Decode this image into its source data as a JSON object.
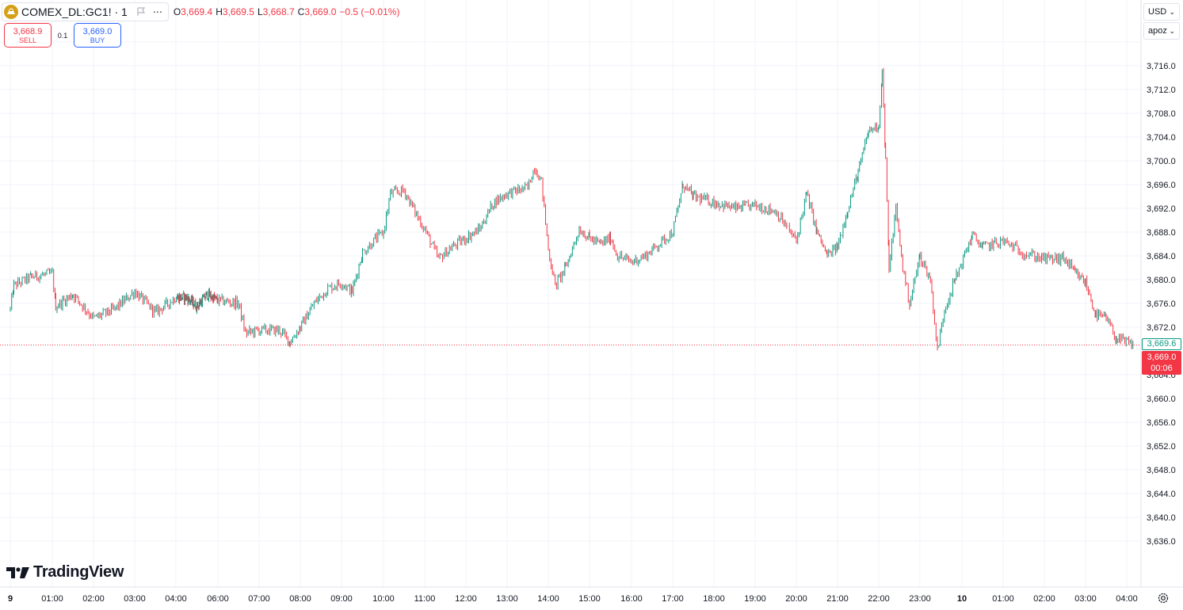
{
  "header": {
    "symbol": "COMEX_DL:GC1! · 1",
    "ohlc": [
      {
        "k": "O",
        "v": "3,669.4"
      },
      {
        "k": "H",
        "v": "3,669.5"
      },
      {
        "k": "L",
        "v": "3,668.7"
      },
      {
        "k": "C",
        "v": "3,669.0"
      },
      {
        "k": "",
        "v": "−0.5 (−0.01%)"
      }
    ]
  },
  "trade": {
    "sell_price": "3,668.9",
    "sell_label": "SELL",
    "spread": "0.1",
    "buy_price": "3,669.0",
    "buy_label": "BUY"
  },
  "controls": {
    "currency": "USD",
    "unit": "apoz"
  },
  "price_tags": {
    "ask": "3,669.6",
    "last": "3,669.0",
    "countdown": "00:06"
  },
  "branding": {
    "name": "TradingView"
  },
  "colors": {
    "up": "#089981",
    "down": "#f23645",
    "grid": "#f0f3fa",
    "text": "#131722",
    "buy": "#2962ff",
    "logo": "#d4a017"
  },
  "icons": [
    "gold-coin-icon",
    "flag-icon",
    "more-dots-icon",
    "chevron-down-icon",
    "settings-icon",
    "tradingview-logo-icon"
  ],
  "chart_data": {
    "type": "line",
    "series": [
      {
        "values_anchor": [
          [
            "9 00:00",
            3675.0
          ],
          [
            "9 00:05",
            3679.0
          ],
          [
            "9 00:30",
            3680.5
          ],
          [
            "9 01:00",
            3681.0
          ],
          [
            "9 01:05",
            3675.5
          ],
          [
            "9 01:30",
            3677.5
          ],
          [
            "9 02:00",
            3673.5
          ],
          [
            "9 02:30",
            3675.0
          ],
          [
            "9 03:00",
            3678.0
          ],
          [
            "9 03:30",
            3674.5
          ],
          [
            "9 04:00",
            3677.0
          ],
          [
            "9 04:30",
            3677.0
          ],
          [
            "9 05:00",
            3675.5
          ],
          [
            "9 05:30",
            3677.5
          ],
          [
            "9 06:00",
            3676.5
          ],
          [
            "9 06:30",
            3676.0
          ],
          [
            "9 06:40",
            3671.0
          ],
          [
            "9 07:00",
            3671.5
          ],
          [
            "9 07:30",
            3671.5
          ],
          [
            "9 07:45",
            3669.5
          ],
          [
            "9 08:00",
            3672.0
          ],
          [
            "9 08:20",
            3676.0
          ],
          [
            "9 08:40",
            3678.5
          ],
          [
            "9 09:00",
            3679.5
          ],
          [
            "9 09:15",
            3678.0
          ],
          [
            "9 09:30",
            3684.5
          ],
          [
            "9 09:50",
            3687.0
          ],
          [
            "9 10:00",
            3688.0
          ],
          [
            "9 10:10",
            3694.5
          ],
          [
            "9 10:30",
            3695.0
          ],
          [
            "9 10:50",
            3690.5
          ],
          [
            "9 11:00",
            3688.5
          ],
          [
            "9 11:20",
            3683.5
          ],
          [
            "9 11:40",
            3685.5
          ],
          [
            "9 12:00",
            3687.0
          ],
          [
            "9 12:20",
            3688.5
          ],
          [
            "9 12:40",
            3693.0
          ],
          [
            "9 13:00",
            3694.5
          ],
          [
            "9 13:30",
            3695.5
          ],
          [
            "9 13:40",
            3699.0
          ],
          [
            "9 13:50",
            3696.5
          ],
          [
            "9 14:00",
            3685.0
          ],
          [
            "9 14:10",
            3679.0
          ],
          [
            "9 14:25",
            3682.0
          ],
          [
            "9 14:45",
            3688.5
          ],
          [
            "9 15:00",
            3687.0
          ],
          [
            "9 15:15",
            3686.0
          ],
          [
            "9 15:30",
            3687.0
          ],
          [
            "9 15:40",
            3684.0
          ],
          [
            "9 16:00",
            3683.0
          ],
          [
            "9 16:20",
            3684.0
          ],
          [
            "9 16:40",
            3686.0
          ],
          [
            "9 17:00",
            3688.0
          ],
          [
            "9 17:15",
            3696.0
          ],
          [
            "9 17:30",
            3694.0
          ],
          [
            "9 18:00",
            3693.0
          ],
          [
            "9 18:30",
            3692.0
          ],
          [
            "9 19:00",
            3692.5
          ],
          [
            "9 19:30",
            3691.5
          ],
          [
            "9 20:00",
            3686.5
          ],
          [
            "9 20:15",
            3694.5
          ],
          [
            "9 20:30",
            3688.0
          ],
          [
            "9 20:45",
            3684.0
          ],
          [
            "9 21:00",
            3685.5
          ],
          [
            "9 21:15",
            3692.0
          ],
          [
            "9 21:30",
            3698.0
          ],
          [
            "9 21:45",
            3705.0
          ],
          [
            "9 22:00",
            3706.0
          ],
          [
            "9 22:05",
            3715.0
          ],
          [
            "9 22:10",
            3700.0
          ],
          [
            "9 22:15",
            3682.0
          ],
          [
            "9 22:25",
            3692.0
          ],
          [
            "9 22:35",
            3682.0
          ],
          [
            "9 22:45",
            3676.0
          ],
          [
            "9 23:00",
            3684.0
          ],
          [
            "9 23:15",
            3680.0
          ],
          [
            "9 23:25",
            3668.0
          ],
          [
            "9 23:35",
            3675.0
          ],
          [
            "9 23:50",
            3680.0
          ],
          [
            "10 00:00",
            3683.0
          ],
          [
            "10 00:15",
            3687.5
          ],
          [
            "10 00:30",
            3685.5
          ],
          [
            "10 01:00",
            3686.5
          ],
          [
            "10 01:30",
            3684.5
          ],
          [
            "10 02:00",
            3683.5
          ],
          [
            "10 02:30",
            3683.5
          ],
          [
            "10 02:45",
            3681.0
          ],
          [
            "10 03:00",
            3679.5
          ],
          [
            "10 03:15",
            3674.0
          ],
          [
            "10 03:30",
            3673.5
          ],
          [
            "10 03:45",
            3670.0
          ],
          [
            "10 04:10",
            3669.0
          ]
        ]
      }
    ],
    "x_tick_labels": [
      "9",
      "01:00",
      "02:00",
      "03:00",
      "04:00",
      "06:00",
      "07:00",
      "08:00",
      "09:00",
      "10:00",
      "11:00",
      "12:00",
      "13:00",
      "14:00",
      "15:00",
      "16:00",
      "17:00",
      "18:00",
      "19:00",
      "20:00",
      "21:00",
      "22:00",
      "23:00",
      "10",
      "01:00",
      "02:00",
      "03:00",
      "04:00"
    ],
    "y_tick_labels": [
      "3,716.0",
      "3,712.0",
      "3,708.0",
      "3,704.0",
      "3,700.0",
      "3,696.0",
      "3,692.0",
      "3,688.0",
      "3,684.0",
      "3,680.0",
      "3,676.0",
      "3,672.0",
      "3,664.0",
      "3,660.0",
      "3,656.0",
      "3,652.0",
      "3,648.0",
      "3,644.0",
      "3,640.0",
      "3,636.0"
    ],
    "ylim": [
      3634.0,
      3721.0
    ],
    "last_price": 3669.0,
    "grid": true,
    "price_line": "dotted"
  }
}
